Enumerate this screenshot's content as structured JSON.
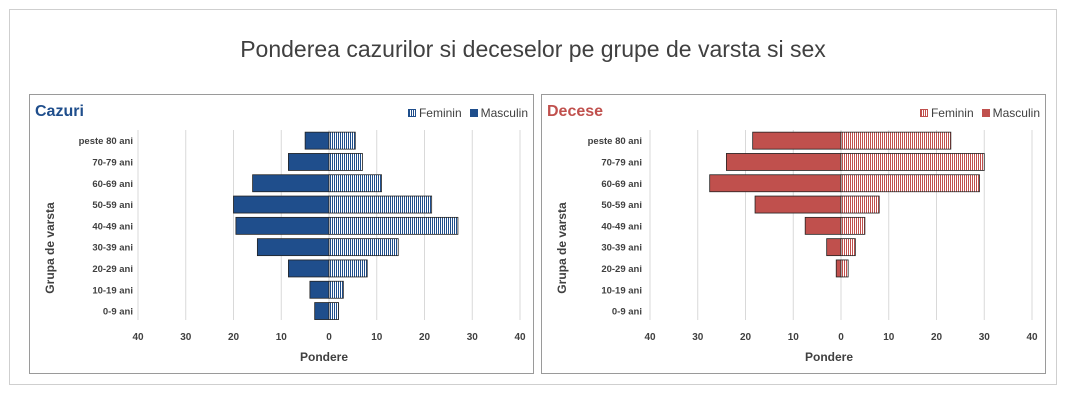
{
  "title": "Ponderea cazurilor si deceselor pe grupe de varsta si sex",
  "chart_data": [
    {
      "type": "bar",
      "orientation": "horizontal-population-pyramid",
      "title": "Cazuri",
      "title_color": "#1f4e8c",
      "categories": [
        "peste 80 ani",
        "70-79 ani",
        "60-69 ani",
        "50-59 ani",
        "40-49 ani",
        "30-39 ani",
        "20-29 ani",
        "10-19 ani",
        "0-9 ani"
      ],
      "series": [
        {
          "name": "Feminin",
          "values": [
            5.5,
            7,
            11,
            21.5,
            27,
            14.5,
            8,
            3,
            2
          ],
          "color": "#1f4e8c",
          "fill": "vertical-stripes"
        },
        {
          "name": "Masculin",
          "values": [
            5,
            8.5,
            16,
            20,
            19.5,
            15,
            8.5,
            4,
            3
          ],
          "color": "#1f4e8c",
          "fill": "solid"
        }
      ],
      "xlabel": "Pondere",
      "ylabel": "Grupa de varsta",
      "xlim": [
        -40,
        40
      ],
      "xticks": [
        "40",
        "30",
        "20",
        "10",
        "0",
        "10",
        "20",
        "30",
        "40"
      ],
      "grid": true,
      "legend_position": "top-right"
    },
    {
      "type": "bar",
      "orientation": "horizontal-population-pyramid",
      "title": "Decese",
      "title_color": "#c0504d",
      "categories": [
        "peste 80 ani",
        "70-79 ani",
        "60-69 ani",
        "50-59 ani",
        "40-49 ani",
        "30-39 ani",
        "20-29 ani",
        "10-19 ani",
        "0-9 ani"
      ],
      "series": [
        {
          "name": "Feminin",
          "values": [
            23,
            30,
            29,
            8,
            5,
            3,
            1.5,
            0,
            0
          ],
          "color": "#c0504d",
          "fill": "vertical-stripes"
        },
        {
          "name": "Masculin",
          "values": [
            18.5,
            24,
            27.5,
            18,
            7.5,
            3,
            1,
            0,
            0
          ],
          "color": "#c0504d",
          "fill": "solid"
        }
      ],
      "xlabel": "Pondere",
      "ylabel": "Grupa de varsta",
      "xlim": [
        -40,
        40
      ],
      "xticks": [
        "40",
        "30",
        "20",
        "10",
        "0",
        "10",
        "20",
        "30",
        "40"
      ],
      "grid": true,
      "legend_position": "top-right"
    }
  ]
}
